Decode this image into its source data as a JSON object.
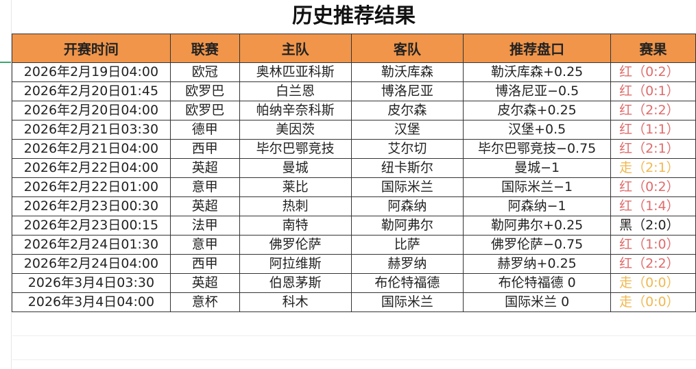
{
  "title": "历史推荐结果",
  "columns": [
    "开赛时间",
    "联赛",
    "主队",
    "客队",
    "推荐盘口",
    "赛果"
  ],
  "colors": {
    "header": "#f0954a",
    "red": "#e06b6b",
    "push": "#f0b850",
    "black": "#222222"
  },
  "rows": [
    {
      "time": "2026年2月19日04:00",
      "league": "欧冠",
      "home": "奥林匹亚科斯",
      "away": "勒沃库森",
      "pick": "勒沃库森+0.25",
      "result": "红（0:2）",
      "type": "red"
    },
    {
      "time": "2026年2月20日01:45",
      "league": "欧罗巴",
      "home": "白兰恩",
      "away": "博洛尼亚",
      "pick": "博洛尼亚−0.5",
      "result": "红（0:1）",
      "type": "red"
    },
    {
      "time": "2026年2月20日04:00",
      "league": "欧罗巴",
      "home": "帕纳辛奈科斯",
      "away": "皮尔森",
      "pick": "皮尔森+0.25",
      "result": "红（2:2）",
      "type": "red"
    },
    {
      "time": "2026年2月21日03:30",
      "league": "德甲",
      "home": "美因茨",
      "away": "汉堡",
      "pick": "汉堡+0.5",
      "result": "红（1:1）",
      "type": "red"
    },
    {
      "time": "2026年2月21日04:00",
      "league": "西甲",
      "home": "毕尔巴鄂竞技",
      "away": "艾尔切",
      "pick": "毕尔巴鄂竞技−0.75",
      "result": "红（2:1）",
      "type": "red"
    },
    {
      "time": "2026年2月22日04:00",
      "league": "英超",
      "home": "曼城",
      "away": "纽卡斯尔",
      "pick": "曼城−1",
      "result": "走（2:1）",
      "type": "push"
    },
    {
      "time": "2026年2月22日01:00",
      "league": "意甲",
      "home": "莱比",
      "away": "国际米兰",
      "pick": "国际米兰−1",
      "result": "红（0:2）",
      "type": "red"
    },
    {
      "time": "2026年2月23日00:30",
      "league": "英超",
      "home": "热刺",
      "away": "阿森纳",
      "pick": "阿森纳−1",
      "result": "红（1:4）",
      "type": "red"
    },
    {
      "time": "2026年2月23日00:15",
      "league": "法甲",
      "home": "南特",
      "away": "勒阿弗尔",
      "pick": "勒阿弗尔+0.25",
      "result": "黑（2:0）",
      "type": "black"
    },
    {
      "time": "2026年2月24日01:30",
      "league": "意甲",
      "home": "佛罗伦萨",
      "away": "比萨",
      "pick": "佛罗伦萨−0.75",
      "result": "红（1:0）",
      "type": "red"
    },
    {
      "time": "2026年2月24日04:00",
      "league": "西甲",
      "home": "阿拉维斯",
      "away": "赫罗纳",
      "pick": "赫罗纳+0.25",
      "result": "红（2:2）",
      "type": "red"
    },
    {
      "time": "2026年3月4日03:30",
      "league": "英超",
      "home": "伯恩茅斯",
      "away": "布伦特福德",
      "pick": "布伦特福德 0",
      "result": "走（0:0）",
      "type": "push"
    },
    {
      "time": "2026年3月4日04:00",
      "league": "意杯",
      "home": "科木",
      "away": "国际米兰",
      "pick": "国际米兰 0",
      "result": "走（0:0）",
      "type": "push"
    }
  ]
}
